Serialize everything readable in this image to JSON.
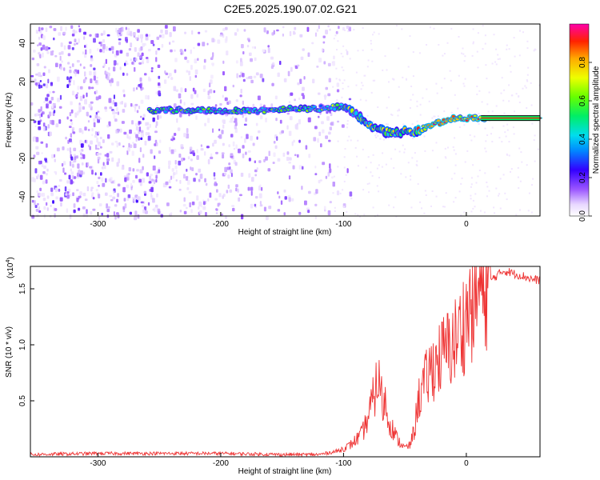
{
  "title": "C2E5.2025.190.07.02.G21",
  "chart_data": [
    {
      "type": "heatmap",
      "xlabel": "Height of straight line (km)",
      "ylabel": "Frequency (Hz)",
      "xlim": [
        -355,
        60
      ],
      "ylim": [
        -50,
        50
      ],
      "xticks": [
        "-300",
        "-200",
        "-100",
        "0"
      ],
      "xtick_values": [
        -300,
        -200,
        -100,
        0
      ],
      "yticks": [
        "-40",
        "-20",
        "0",
        "20",
        "40"
      ],
      "ytick_values": [
        -40,
        -20,
        0,
        20,
        40
      ],
      "colorbar": {
        "label": "Normalized spectral amplitude",
        "range": [
          0,
          1
        ],
        "ticks": [
          "0.0",
          "0.2",
          "0.4",
          "0.6",
          "0.8"
        ],
        "tick_values": [
          0.0,
          0.2,
          0.4,
          0.6,
          0.8
        ]
      },
      "signal_track": {
        "x": [
          -258,
          -240,
          -220,
          -200,
          -180,
          -160,
          -140,
          -120,
          -100,
          -90,
          -80,
          -70,
          -60,
          -50,
          -40,
          -30,
          -20,
          -10,
          0,
          10,
          20,
          60
        ],
        "frequency": [
          5,
          5,
          5,
          5,
          5,
          5,
          6,
          6,
          7,
          3,
          -2,
          -5,
          -7,
          -6,
          -6,
          -3,
          -1,
          1,
          1,
          1,
          1,
          1
        ]
      }
    },
    {
      "type": "line",
      "xlabel": "Height of straight line (km)",
      "ylabel": "SNR (10 * v/v)",
      "y_multiplier": "(x10",
      "y_multiplier_exp": "4",
      "xlim": [
        -355,
        60
      ],
      "ylim": [
        0,
        1.7
      ],
      "xticks": [
        "-300",
        "-200",
        "-100",
        "0"
      ],
      "xtick_values": [
        -300,
        -200,
        -100,
        0
      ],
      "yticks": [
        "0.5",
        "1.0",
        "1.5"
      ],
      "ytick_values": [
        0.5,
        1.0,
        1.5
      ],
      "line_color": "#ee3333",
      "series": [
        {
          "x": [
            -355,
            -300,
            -250,
            -200,
            -150,
            -120,
            -105,
            -95,
            -85,
            -80,
            -75,
            -72,
            -70,
            -68,
            -66,
            -64,
            -60,
            -56,
            -50,
            -46,
            -42,
            -40,
            -38,
            -36,
            -32,
            -28,
            -24,
            -20,
            -16,
            -12,
            -8,
            -4,
            0,
            4,
            8,
            12,
            16,
            20,
            25,
            30,
            35,
            40,
            45,
            50,
            55,
            60
          ],
          "y": [
            0.02,
            0.03,
            0.03,
            0.03,
            0.02,
            0.02,
            0.05,
            0.1,
            0.2,
            0.35,
            0.55,
            0.7,
            0.62,
            0.45,
            0.5,
            0.35,
            0.25,
            0.15,
            0.08,
            0.1,
            0.25,
            0.45,
            0.55,
            0.6,
            0.7,
            0.8,
            0.85,
            0.9,
            0.95,
            1.0,
            1.05,
            1.15,
            1.25,
            1.35,
            1.45,
            1.5,
            1.55,
            1.58,
            1.62,
            1.66,
            1.65,
            1.63,
            1.62,
            1.6,
            1.58,
            1.58
          ]
        }
      ]
    }
  ]
}
